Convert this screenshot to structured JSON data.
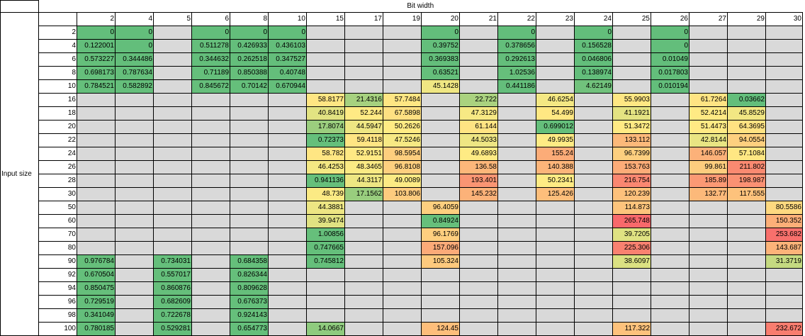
{
  "chart_data": {
    "type": "heatmap",
    "x_title": "Bit width",
    "y_title": "Input size",
    "columns": [
      2,
      4,
      5,
      6,
      8,
      10,
      15,
      17,
      19,
      20,
      21,
      22,
      23,
      24,
      25,
      26,
      27,
      29,
      30
    ],
    "rows": [
      2,
      4,
      6,
      8,
      10,
      16,
      18,
      20,
      22,
      24,
      26,
      28,
      30,
      50,
      60,
      70,
      80,
      90,
      92,
      94,
      96,
      98,
      100
    ],
    "values": [
      [
        "0",
        "0",
        null,
        "0",
        "0",
        "0",
        null,
        null,
        null,
        "0",
        null,
        "0",
        null,
        "0",
        null,
        "0",
        null,
        null,
        null
      ],
      [
        "0.122001",
        "0",
        null,
        "0.511278",
        "0.426933",
        "0.436103",
        null,
        null,
        null,
        "0.39752",
        null,
        "0.378656",
        null,
        "0.156528",
        null,
        "0",
        null,
        null,
        null
      ],
      [
        "0.573227",
        "0.344486",
        null,
        "0.344632",
        "0.262518",
        "0.347527",
        null,
        null,
        null,
        "0.369383",
        null,
        "0.292613",
        null,
        "0.046806",
        null,
        "0.01049",
        null,
        null,
        null
      ],
      [
        "0.698173",
        "0.787634",
        null,
        "0.71189",
        "0.850388",
        "0.40748",
        null,
        null,
        null,
        "0.63521",
        null,
        "1.02536",
        null,
        "0.138974",
        null,
        "0.017803",
        null,
        null,
        null
      ],
      [
        "0.784521",
        "0.582892",
        null,
        "0.845672",
        "0.70142",
        "0.670944",
        null,
        null,
        null,
        "45.1428",
        null,
        "0.441186",
        null,
        "4.62149",
        null,
        "0.010194",
        null,
        null,
        null
      ],
      [
        null,
        null,
        null,
        null,
        null,
        null,
        "58.8177",
        "21.4316",
        "57.7484",
        null,
        "22.722",
        null,
        "46.6254",
        null,
        "55.9903",
        null,
        "61.7264",
        "0.03662",
        null
      ],
      [
        null,
        null,
        null,
        null,
        null,
        null,
        "40.8419",
        "52.244",
        "67.5898",
        null,
        "47.3129",
        null,
        "54.499",
        null,
        "41.1921",
        null,
        "52.4214",
        "45.8529",
        null
      ],
      [
        null,
        null,
        null,
        null,
        null,
        null,
        "17.8074",
        "44.5947",
        "50.2626",
        null,
        "61.144",
        null,
        "0.699012",
        null,
        "51.3472",
        null,
        "51.4473",
        "64.3695",
        null
      ],
      [
        null,
        null,
        null,
        null,
        null,
        null,
        "0.72373",
        "59.4118",
        "47.5246",
        null,
        "44.5033",
        null,
        "49.9935",
        null,
        "133.112",
        null,
        "42.8144",
        "94.0554",
        null
      ],
      [
        null,
        null,
        null,
        null,
        null,
        null,
        "58.782",
        "52.9151",
        "98.5954",
        null,
        "49.6893",
        null,
        "155.24",
        null,
        "96.7399",
        null,
        "146.057",
        "57.1084",
        null
      ],
      [
        null,
        null,
        null,
        null,
        null,
        null,
        "46.4253",
        "48.3465",
        "96.8108",
        null,
        "136.58",
        null,
        "140.388",
        null,
        "153.763",
        null,
        "99.861",
        "211.802",
        null
      ],
      [
        null,
        null,
        null,
        null,
        null,
        null,
        "0.941136",
        "44.3117",
        "49.0089",
        null,
        "193.401",
        null,
        "50.2341",
        null,
        "216.754",
        null,
        "185.89",
        "198.987",
        null
      ],
      [
        null,
        null,
        null,
        null,
        null,
        null,
        "48.739",
        "17.1562",
        "103.806",
        null,
        "145.232",
        null,
        "125.426",
        null,
        "120.239",
        null,
        "132.77",
        "117.555",
        null
      ],
      [
        null,
        null,
        null,
        null,
        null,
        null,
        "44.3881",
        null,
        null,
        "96.4059",
        null,
        null,
        null,
        null,
        "114.873",
        null,
        null,
        null,
        "80.5586"
      ],
      [
        null,
        null,
        null,
        null,
        null,
        null,
        "39.9474",
        null,
        null,
        "0.84924",
        null,
        null,
        null,
        null,
        "265.748",
        null,
        null,
        null,
        "150.352"
      ],
      [
        null,
        null,
        null,
        null,
        null,
        null,
        "1.00856",
        null,
        null,
        "96.1769",
        null,
        null,
        null,
        null,
        "39.7205",
        null,
        null,
        null,
        "253.682"
      ],
      [
        null,
        null,
        null,
        null,
        null,
        null,
        "0.747665",
        null,
        null,
        "157.096",
        null,
        null,
        null,
        null,
        "225.306",
        null,
        null,
        null,
        "143.687"
      ],
      [
        "0.976784",
        null,
        "0.734031",
        null,
        "0.684358",
        null,
        "0.745812",
        null,
        null,
        "105.324",
        null,
        null,
        null,
        null,
        "38.6097",
        null,
        null,
        null,
        "31.3719"
      ],
      [
        "0.670504",
        null,
        "0.557017",
        null,
        "0.826344",
        null,
        null,
        null,
        null,
        null,
        null,
        null,
        null,
        null,
        null,
        null,
        null,
        null,
        null
      ],
      [
        "0.850475",
        null,
        "0.860876",
        null,
        "0.809628",
        null,
        null,
        null,
        null,
        null,
        null,
        null,
        null,
        null,
        null,
        null,
        null,
        null,
        null
      ],
      [
        "0.729519",
        null,
        "0.682609",
        null,
        "0.676373",
        null,
        null,
        null,
        null,
        null,
        null,
        null,
        null,
        null,
        null,
        null,
        null,
        null,
        null
      ],
      [
        "0.341049",
        null,
        "0.722678",
        null,
        "0.924143",
        null,
        null,
        null,
        null,
        null,
        null,
        null,
        null,
        null,
        null,
        null,
        null,
        null,
        null
      ],
      [
        "0.780185",
        null,
        "0.529281",
        null,
        "0.654773",
        null,
        "14.0667",
        null,
        null,
        "124.45",
        null,
        null,
        null,
        null,
        "117.322",
        null,
        null,
        null,
        "232.672"
      ]
    ],
    "color_scale": {
      "low": "#63be7b",
      "mid": "#ffeb84",
      "high": "#f8696b",
      "empty": "#d9d9d9",
      "mid_value": 50,
      "max_value": 265.748
    },
    "grid": true
  }
}
